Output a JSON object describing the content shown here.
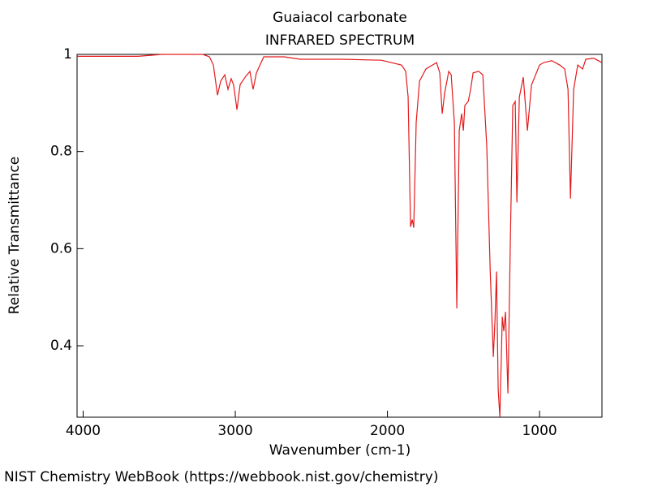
{
  "chart_data": {
    "type": "line",
    "title": "Guaiacol carbonate",
    "subtitle": "INFRARED SPECTRUM",
    "x_label": "Wavenumber (cm-1)",
    "y_label": "Relative Transmittance",
    "footer": "NIST Chemistry WebBook (https://webbook.nist.gov/chemistry)",
    "color": "#e31a1c",
    "xlim": [
      4040,
      590
    ],
    "ylim": [
      0.253,
      1.0
    ],
    "xticks": [
      4000,
      3000,
      2000,
      1000
    ],
    "yticks": [
      0.4,
      0.6,
      0.8,
      1
    ],
    "x": [
      4040,
      3640,
      3480,
      3213,
      3170,
      3144,
      3117,
      3096,
      3069,
      3048,
      3027,
      3011,
      2989,
      2968,
      2931,
      2904,
      2883,
      2861,
      2813,
      2680,
      2573,
      2307,
      2040,
      1907,
      1880,
      1864,
      1848,
      1837,
      1827,
      1811,
      1789,
      1747,
      1677,
      1656,
      1640,
      1624,
      1597,
      1581,
      1560,
      1544,
      1528,
      1512,
      1501,
      1491,
      1469,
      1453,
      1437,
      1400,
      1373,
      1347,
      1325,
      1304,
      1293,
      1283,
      1272,
      1261,
      1245,
      1235,
      1224,
      1208,
      1192,
      1176,
      1160,
      1149,
      1133,
      1107,
      1080,
      1053,
      1000,
      973,
      920,
      867,
      835,
      813,
      797,
      776,
      749,
      717,
      696,
      643,
      590
    ],
    "values": [
      0.996,
      0.996,
      1.0,
      1.0,
      0.995,
      0.978,
      0.916,
      0.945,
      0.958,
      0.928,
      0.95,
      0.937,
      0.886,
      0.938,
      0.955,
      0.965,
      0.928,
      0.962,
      0.995,
      0.995,
      0.99,
      0.99,
      0.988,
      0.978,
      0.965,
      0.912,
      0.645,
      0.66,
      0.643,
      0.86,
      0.945,
      0.97,
      0.983,
      0.962,
      0.878,
      0.92,
      0.965,
      0.958,
      0.86,
      0.477,
      0.843,
      0.878,
      0.843,
      0.895,
      0.903,
      0.928,
      0.962,
      0.965,
      0.958,
      0.81,
      0.56,
      0.377,
      0.452,
      0.553,
      0.31,
      0.253,
      0.46,
      0.43,
      0.47,
      0.302,
      0.617,
      0.895,
      0.903,
      0.695,
      0.912,
      0.953,
      0.843,
      0.937,
      0.978,
      0.983,
      0.987,
      0.978,
      0.97,
      0.928,
      0.703,
      0.928,
      0.978,
      0.97,
      0.99,
      0.992,
      0.983
    ]
  }
}
